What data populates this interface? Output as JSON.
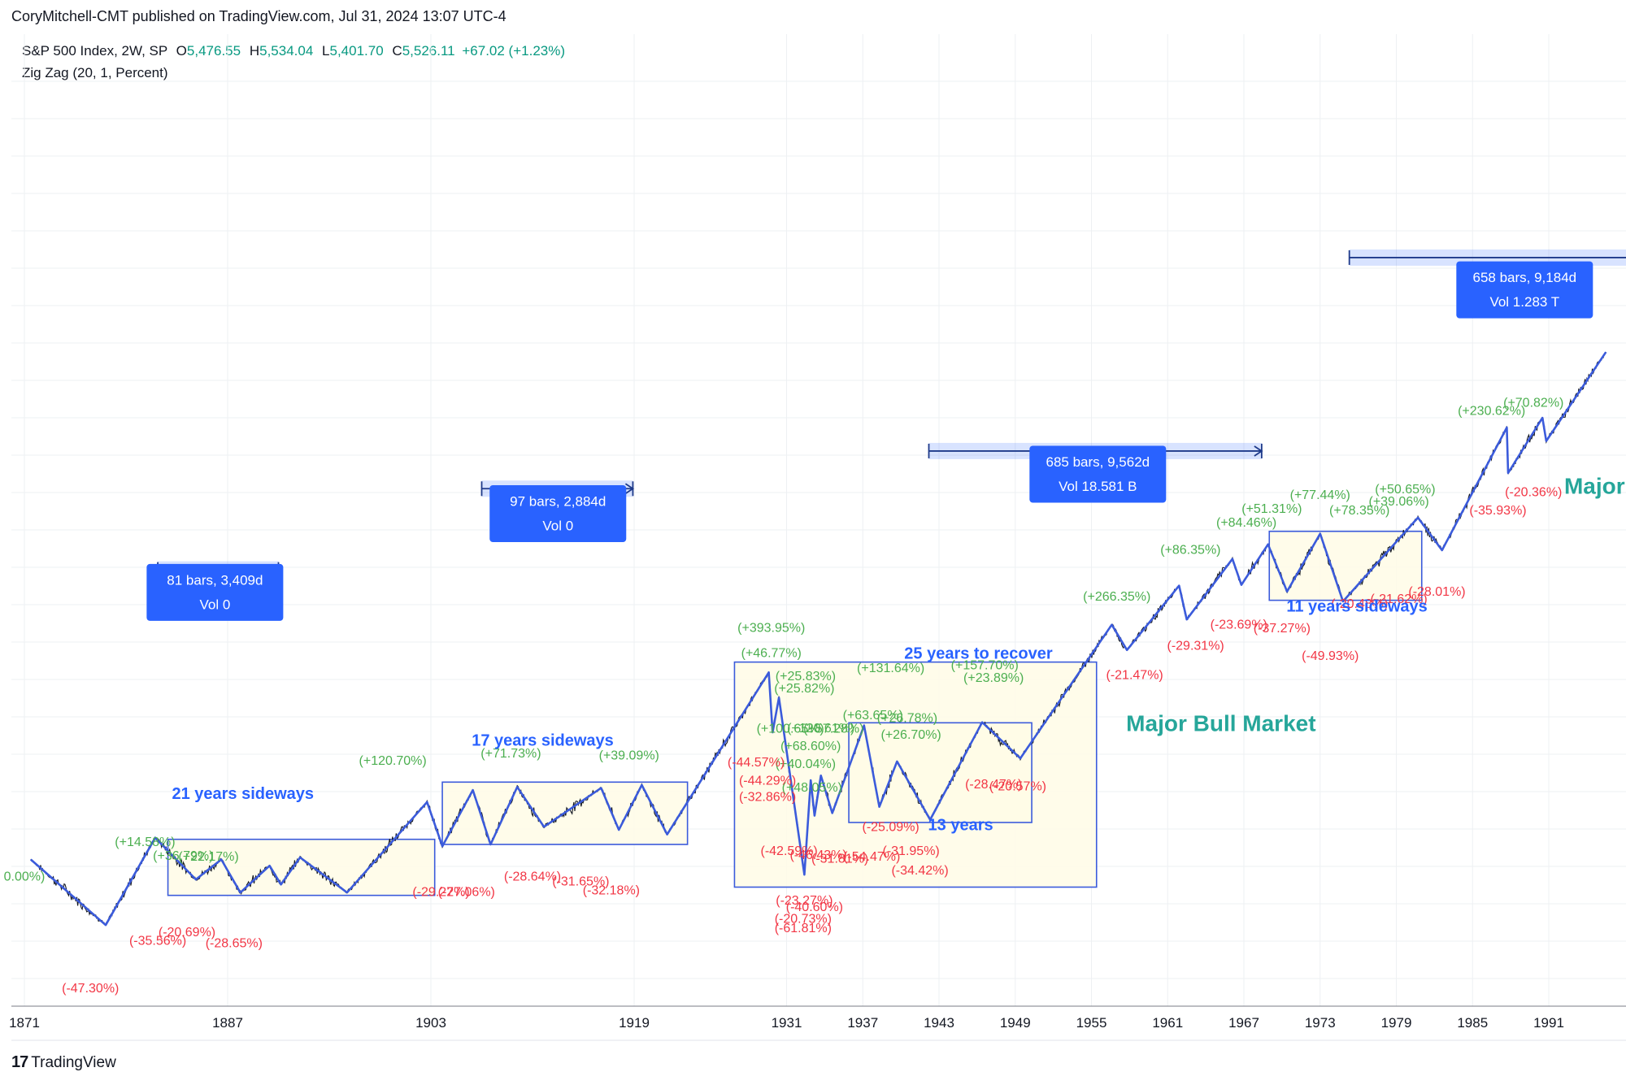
{
  "header": {
    "published": "CoryMitchell-CMT published on TradingView.com, Jul 31, 2024 13:07 UTC-4"
  },
  "legend": {
    "symbol": "S&P 500 Index, 2W, SP",
    "open_label": "O",
    "open": "5,476.55",
    "high_label": "H",
    "high": "5,534.04",
    "low_label": "L",
    "low": "5,401.70",
    "close_label": "C",
    "close": "5,526.11",
    "change": "+67.02 (+1.23%)",
    "indicator": "Zig Zag (20, 1, Percent)"
  },
  "footer": {
    "brand": "TradingView",
    "brand_mark": "17"
  },
  "colors": {
    "zigzag": "#3b5bdb",
    "price": "#131722",
    "gain": "#4caf50",
    "loss": "#f23645",
    "box_fill": "#fffbe6",
    "box_stroke": "#3b5bdb",
    "measure": "#2962ff",
    "bull_text": "#26a69a",
    "annotation_blue": "#2962ff",
    "grid": "#eef0f3"
  },
  "chart_data": {
    "type": "line",
    "title": "",
    "x_axis": {
      "ticks": [
        "1871",
        "1887",
        "1903",
        "1919",
        "1931",
        "1937",
        "1943",
        "1949",
        "1955",
        "1961",
        "1967",
        "1973",
        "1979",
        "1985",
        "1991"
      ]
    },
    "scale": "log",
    "zigzag": [
      {
        "t": 1871.5,
        "v": 5.1
      },
      {
        "t": 1877.4,
        "v": 2.7
      },
      {
        "t": 1881.3,
        "v": 6.3
      },
      {
        "t": 1884.5,
        "v": 4.2
      },
      {
        "t": 1886.5,
        "v": 5.1
      },
      {
        "t": 1888.0,
        "v": 3.7
      },
      {
        "t": 1890.3,
        "v": 4.8
      },
      {
        "t": 1891.2,
        "v": 4.0
      },
      {
        "t": 1892.7,
        "v": 5.2
      },
      {
        "t": 1896.4,
        "v": 3.7
      },
      {
        "t": 1902.7,
        "v": 8.9
      },
      {
        "t": 1903.9,
        "v": 5.8
      },
      {
        "t": 1906.3,
        "v": 10.0
      },
      {
        "t": 1907.7,
        "v": 5.9
      },
      {
        "t": 1909.8,
        "v": 10.3
      },
      {
        "t": 1911.9,
        "v": 7.0
      },
      {
        "t": 1916.4,
        "v": 10.2
      },
      {
        "t": 1917.8,
        "v": 6.8
      },
      {
        "t": 1919.6,
        "v": 10.5
      },
      {
        "t": 1921.6,
        "v": 6.5
      },
      {
        "t": 1929.6,
        "v": 31.3
      },
      {
        "t": 1929.9,
        "v": 17.5
      },
      {
        "t": 1930.4,
        "v": 24.5
      },
      {
        "t": 1932.4,
        "v": 4.4
      },
      {
        "t": 1932.9,
        "v": 11.0
      },
      {
        "t": 1933.2,
        "v": 7.8
      },
      {
        "t": 1933.7,
        "v": 11.5
      },
      {
        "t": 1934.6,
        "v": 8.0
      },
      {
        "t": 1937.1,
        "v": 18.7
      },
      {
        "t": 1938.3,
        "v": 8.5
      },
      {
        "t": 1939.7,
        "v": 13.2
      },
      {
        "t": 1942.3,
        "v": 7.5
      },
      {
        "t": 1946.4,
        "v": 19.3
      },
      {
        "t": 1949.4,
        "v": 13.6
      },
      {
        "t": 1956.6,
        "v": 49.7
      },
      {
        "t": 1957.8,
        "v": 38.9
      },
      {
        "t": 1961.9,
        "v": 72.6
      },
      {
        "t": 1962.5,
        "v": 52.3
      },
      {
        "t": 1966.1,
        "v": 94.1
      },
      {
        "t": 1966.8,
        "v": 73.2
      },
      {
        "t": 1968.9,
        "v": 108.4
      },
      {
        "t": 1970.4,
        "v": 68.6
      },
      {
        "t": 1973.0,
        "v": 120.2
      },
      {
        "t": 1974.8,
        "v": 62.3
      },
      {
        "t": 1980.7,
        "v": 140.5
      },
      {
        "t": 1982.6,
        "v": 102.4
      },
      {
        "t": 1987.7,
        "v": 336.8
      },
      {
        "t": 1987.8,
        "v": 216.5
      },
      {
        "t": 1990.5,
        "v": 369.8
      },
      {
        "t": 1990.8,
        "v": 295.5
      },
      {
        "t": 1995.5,
        "v": 700
      }
    ],
    "swing_labels": [
      {
        "t": 1871.0,
        "v": 4.3,
        "text": "0.00%)",
        "kind": "gain"
      },
      {
        "t": 1876.2,
        "v": 1.45,
        "text": "(-47.30%)",
        "kind": "loss"
      },
      {
        "t": 1880.5,
        "v": 6.0,
        "text": "(+14.58%)",
        "kind": "gain"
      },
      {
        "t": 1883.5,
        "v": 5.25,
        "text": "(+36.79%)",
        "kind": "gain"
      },
      {
        "t": 1885.5,
        "v": 5.2,
        "text": "(+22.17%)",
        "kind": "gain"
      },
      {
        "t": 1883.8,
        "v": 2.5,
        "text": "(-20.69%)",
        "kind": "loss"
      },
      {
        "t": 1881.5,
        "v": 2.3,
        "text": "(-35.56%)",
        "kind": "loss"
      },
      {
        "t": 1887.5,
        "v": 2.25,
        "text": "(-28.65%)",
        "kind": "loss"
      },
      {
        "t": 1903.8,
        "v": 3.7,
        "text": "(-29.27%)",
        "kind": "loss"
      },
      {
        "t": 1905.8,
        "v": 3.7,
        "text": "(-27.06%)",
        "kind": "loss"
      },
      {
        "t": 1911.0,
        "v": 4.3,
        "text": "(-28.64%)",
        "kind": "loss"
      },
      {
        "t": 1914.8,
        "v": 4.1,
        "text": "(-31.65%)",
        "kind": "loss"
      },
      {
        "t": 1917.2,
        "v": 3.75,
        "text": "(-32.18%)",
        "kind": "loss"
      },
      {
        "t": 1900.0,
        "v": 13.2,
        "text": "(+120.70%)",
        "kind": "gain"
      },
      {
        "t": 1909.3,
        "v": 14.2,
        "text": "(+71.73%)",
        "kind": "gain"
      },
      {
        "t": 1918.6,
        "v": 13.9,
        "text": "(+39.09%)",
        "kind": "gain"
      },
      {
        "t": 1929.8,
        "v": 48.0,
        "text": "(+393.95%)",
        "kind": "gain"
      },
      {
        "t": 1929.8,
        "v": 37.5,
        "text": "(+46.77%)",
        "kind": "gain"
      },
      {
        "t": 1932.5,
        "v": 30.0,
        "text": "(+25.83%)",
        "kind": "gain"
      },
      {
        "t": 1932.4,
        "v": 26.6,
        "text": "(+25.82%)",
        "kind": "gain"
      },
      {
        "t": 1931.3,
        "v": 18.0,
        "text": "(+100.65%)",
        "kind": "gain"
      },
      {
        "t": 1933.7,
        "v": 18.1,
        "text": "(+120.61%)",
        "kind": "gain"
      },
      {
        "t": 1934.7,
        "v": 18.0,
        "text": "(+57.28%)",
        "kind": "gain"
      },
      {
        "t": 1932.9,
        "v": 15.2,
        "text": "(+68.60%)",
        "kind": "gain"
      },
      {
        "t": 1932.5,
        "v": 12.8,
        "text": "(+40.04%)",
        "kind": "gain"
      },
      {
        "t": 1933.0,
        "v": 10.2,
        "text": "(+48.05%)",
        "kind": "gain"
      },
      {
        "t": 1928.6,
        "v": 13.0,
        "text": "(-44.57%)",
        "kind": "loss"
      },
      {
        "t": 1929.5,
        "v": 10.9,
        "text": "(-44.29%)",
        "kind": "loss"
      },
      {
        "t": 1929.5,
        "v": 9.3,
        "text": "(-32.86%)",
        "kind": "loss"
      },
      {
        "t": 1931.2,
        "v": 5.5,
        "text": "(-42.59%)",
        "kind": "loss"
      },
      {
        "t": 1933.5,
        "v": 5.3,
        "text": "(-46.43%)",
        "kind": "loss"
      },
      {
        "t": 1935.2,
        "v": 5.1,
        "text": "(-31.81%)",
        "kind": "loss"
      },
      {
        "t": 1932.4,
        "v": 3.4,
        "text": "(-23.27%)",
        "kind": "loss"
      },
      {
        "t": 1933.2,
        "v": 3.2,
        "text": "(-40.60%)",
        "kind": "loss"
      },
      {
        "t": 1932.3,
        "v": 2.85,
        "text": "(-20.73%)",
        "kind": "loss"
      },
      {
        "t": 1932.3,
        "v": 2.6,
        "text": "(-61.81%)",
        "kind": "loss"
      },
      {
        "t": 1939.2,
        "v": 32.5,
        "text": "(+131.64%)",
        "kind": "gain"
      },
      {
        "t": 1937.8,
        "v": 20.5,
        "text": "(+63.65%)",
        "kind": "gain"
      },
      {
        "t": 1940.5,
        "v": 20.0,
        "text": "(+26.78%)",
        "kind": "gain"
      },
      {
        "t": 1940.8,
        "v": 17.0,
        "text": "(+26.70%)",
        "kind": "gain"
      },
      {
        "t": 1939.2,
        "v": 6.95,
        "text": "(-25.09%)",
        "kind": "loss"
      },
      {
        "t": 1937.7,
        "v": 5.2,
        "text": "(-54.47%)",
        "kind": "loss"
      },
      {
        "t": 1940.8,
        "v": 5.5,
        "text": "(-31.95%)",
        "kind": "loss"
      },
      {
        "t": 1941.5,
        "v": 4.55,
        "text": "(-34.42%)",
        "kind": "loss"
      },
      {
        "t": 1946.6,
        "v": 33.3,
        "text": "(+157.70%)",
        "kind": "gain"
      },
      {
        "t": 1947.3,
        "v": 29.5,
        "text": "(+23.89%)",
        "kind": "gain"
      },
      {
        "t": 1947.3,
        "v": 10.5,
        "text": "(-28.47%)",
        "kind": "loss"
      },
      {
        "t": 1949.2,
        "v": 10.3,
        "text": "(-20.57%)",
        "kind": "loss"
      },
      {
        "t": 1957.0,
        "v": 65.0,
        "text": "(+266.35%)",
        "kind": "gain"
      },
      {
        "t": 1958.4,
        "v": 30.3,
        "text": "(-21.47%)",
        "kind": "loss"
      },
      {
        "t": 1962.8,
        "v": 102.0,
        "text": "(+86.35%)",
        "kind": "gain"
      },
      {
        "t": 1963.2,
        "v": 40.3,
        "text": "(-29.31%)",
        "kind": "loss"
      },
      {
        "t": 1967.2,
        "v": 133.0,
        "text": "(+84.46%)",
        "kind": "gain"
      },
      {
        "t": 1969.2,
        "v": 152.0,
        "text": "(+51.31%)",
        "kind": "gain"
      },
      {
        "t": 1966.6,
        "v": 49.5,
        "text": "(-23.69%)",
        "kind": "loss"
      },
      {
        "t": 1970.0,
        "v": 47.8,
        "text": "(-37.27%)",
        "kind": "loss"
      },
      {
        "t": 1973.0,
        "v": 174.0,
        "text": "(+77.44%)",
        "kind": "gain"
      },
      {
        "t": 1976.1,
        "v": 150.0,
        "text": "(+78.35%)",
        "kind": "gain"
      },
      {
        "t": 1979.7,
        "v": 184.0,
        "text": "(+50.65%)",
        "kind": "gain"
      },
      {
        "t": 1979.2,
        "v": 163.0,
        "text": "(+39.06%)",
        "kind": "gain"
      },
      {
        "t": 1976.1,
        "v": 60.5,
        "text": "(-20.48%)",
        "kind": "loss"
      },
      {
        "t": 1979.2,
        "v": 63.5,
        "text": "(-21.62%)",
        "kind": "loss"
      },
      {
        "t": 1982.2,
        "v": 68.0,
        "text": "(-28.01%)",
        "kind": "loss"
      },
      {
        "t": 1973.8,
        "v": 36.5,
        "text": "(-49.93%)",
        "kind": "loss"
      },
      {
        "t": 1986.5,
        "v": 394.0,
        "text": "(+230.62%)",
        "kind": "gain"
      },
      {
        "t": 1989.8,
        "v": 425.0,
        "text": "(+70.82%)",
        "kind": "gain"
      },
      {
        "t": 1989.8,
        "v": 179.0,
        "text": "(-20.36%)",
        "kind": "loss"
      },
      {
        "t": 1987.0,
        "v": 150.0,
        "text": "(-35.93%)",
        "kind": "loss"
      }
    ],
    "boxes": [
      {
        "t0": 1882.3,
        "t1": 1903.3,
        "v_hi": 6.2,
        "v_lo": 3.6
      },
      {
        "t0": 1903.9,
        "t1": 1923.2,
        "v_hi": 10.8,
        "v_lo": 5.9
      },
      {
        "t0": 1926.9,
        "t1": 1955.4,
        "v_hi": 34.6,
        "v_lo": 3.9
      },
      {
        "t0": 1935.9,
        "t1": 1950.3,
        "v_hi": 19.2,
        "v_lo": 7.3
      },
      {
        "t0": 1969.0,
        "t1": 1981.0,
        "v_hi": 123.0,
        "v_lo": 63.0
      }
    ],
    "annotations": [
      {
        "t": 1888.2,
        "v": 9.55,
        "text": "21 years sideways",
        "kind": "blue"
      },
      {
        "t": 1911.8,
        "v": 16.0,
        "text": "17 years sideways",
        "kind": "blue"
      },
      {
        "t": 1946.1,
        "v": 37.2,
        "text": "25 years to recover",
        "kind": "blue"
      },
      {
        "t": 1944.7,
        "v": 7.05,
        "text": "13 years",
        "kind": "blue"
      },
      {
        "t": 1975.9,
        "v": 58.8,
        "text": "11 years sideways",
        "kind": "blue"
      },
      {
        "t": 1965.2,
        "v": 18.8,
        "text": "Major Bull Market",
        "kind": "bull"
      },
      {
        "t": 1995.5,
        "v": 188.0,
        "text": "Major B",
        "kind": "bull"
      }
    ],
    "measures": [
      {
        "t0": 1881.5,
        "t1": 1891.0,
        "v_arrow": 85.0,
        "box_t": 1886.0,
        "box_v": 68.0,
        "line1": "81 bars, 3,409d",
        "line2": "Vol 0"
      },
      {
        "t0": 1907.0,
        "t1": 1918.9,
        "v_arrow": 186.0,
        "box_t": 1913.0,
        "box_v": 146.0,
        "line1": "97 bars, 2,884d",
        "line2": "Vol 0"
      },
      {
        "t0": 1942.2,
        "t1": 1968.4,
        "v_arrow": 268.0,
        "box_t": 1955.5,
        "box_v": 214.0,
        "line1": "685 bars, 9,562d",
        "line2": "Vol 18.581 B"
      },
      {
        "t0": 1975.3,
        "t1": 1998.0,
        "v_arrow": 1750.0,
        "box_t": 1989.1,
        "box_v": 1280.0,
        "line1": "658 bars, 9,184d",
        "line2": "Vol 1.283 T"
      }
    ]
  }
}
